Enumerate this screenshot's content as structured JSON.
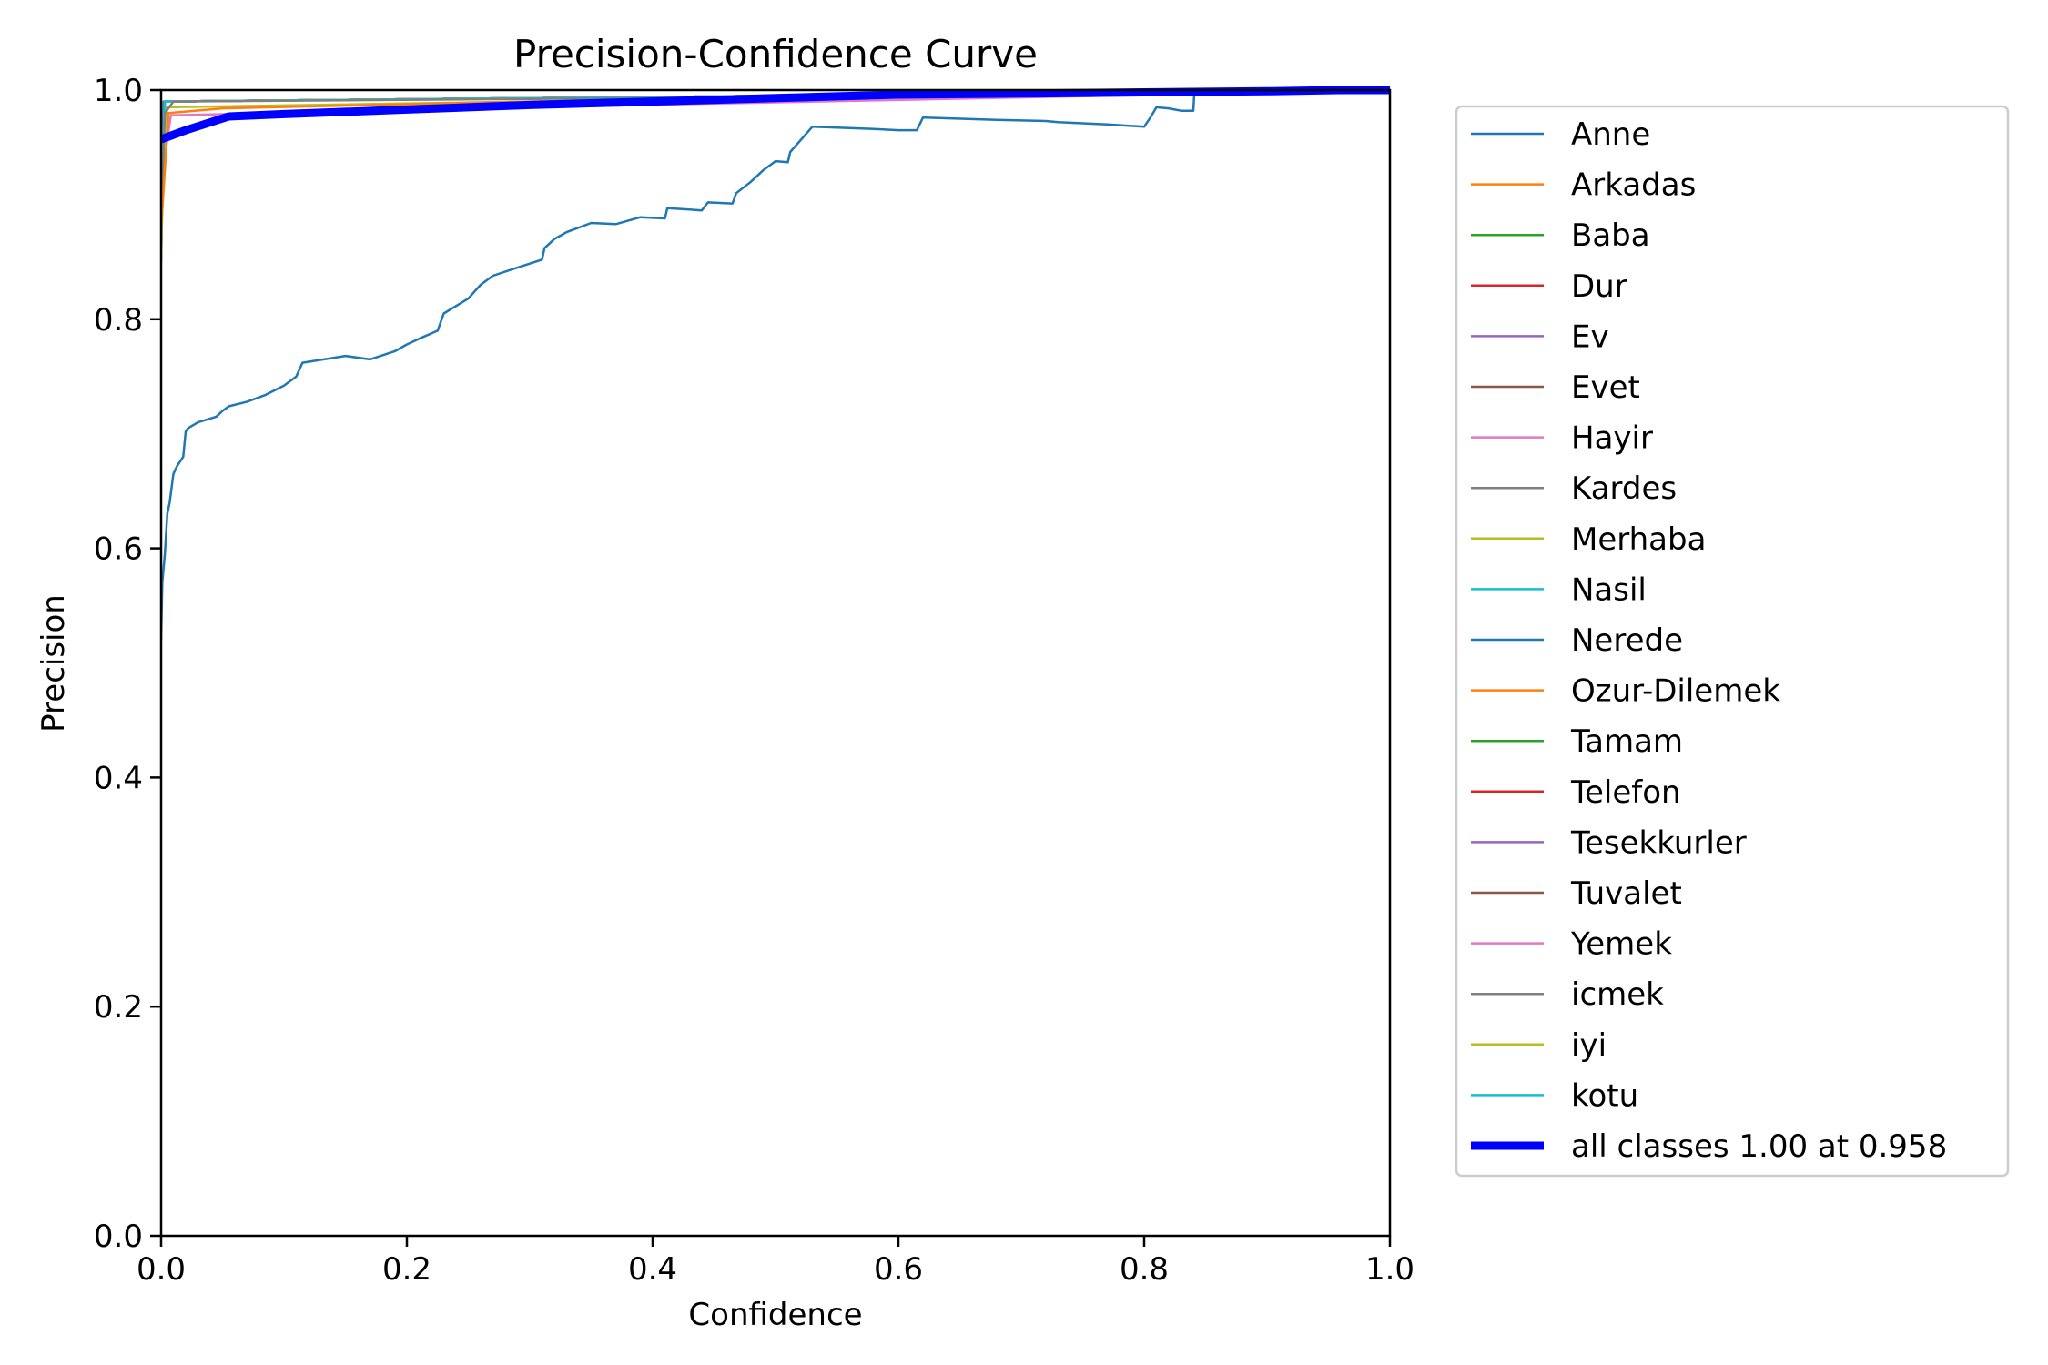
{
  "chart_data": {
    "type": "line",
    "title": "Precision-Confidence Curve",
    "xlabel": "Confidence",
    "ylabel": "Precision",
    "xlim": [
      0,
      1
    ],
    "ylim": [
      0,
      1
    ],
    "xticks": [
      "0.0",
      "0.2",
      "0.4",
      "0.6",
      "0.8",
      "1.0"
    ],
    "yticks": [
      "0.0",
      "0.2",
      "0.4",
      "0.6",
      "0.8",
      "1.0"
    ],
    "grid": false,
    "legend_position": "outside-right",
    "series": [
      {
        "name": "Anne",
        "color": "#1f77b4",
        "x": [
          0,
          0.002,
          1
        ],
        "y": [
          0.85,
          0.99,
          1.0
        ]
      },
      {
        "name": "Arkadas",
        "color": "#ff7f0e",
        "x": [
          0,
          0.003,
          0.006,
          0.05,
          0.3,
          0.6,
          1
        ],
        "y": [
          0.88,
          0.93,
          0.98,
          0.984,
          0.99,
          0.995,
          1.0
        ]
      },
      {
        "name": "Baba",
        "color": "#2ca02c",
        "x": [
          0,
          0.003,
          1
        ],
        "y": [
          0.9,
          0.99,
          1.0
        ]
      },
      {
        "name": "Dur",
        "color": "#d62728",
        "x": [
          0,
          0.003,
          1
        ],
        "y": [
          0.9,
          0.99,
          1.0
        ]
      },
      {
        "name": "Ev",
        "color": "#9467bd",
        "x": [
          0,
          0.003,
          1
        ],
        "y": [
          0.9,
          0.99,
          1.0
        ]
      },
      {
        "name": "Evet",
        "color": "#8c564b",
        "x": [
          0,
          0.003,
          1
        ],
        "y": [
          0.9,
          0.99,
          1.0
        ]
      },
      {
        "name": "Hayir",
        "color": "#e377c2",
        "x": [
          0,
          0.004,
          0.008,
          0.3,
          1
        ],
        "y": [
          0.88,
          0.95,
          0.978,
          0.985,
          1.0
        ]
      },
      {
        "name": "Kardes",
        "color": "#7f7f7f",
        "x": [
          0,
          0.003,
          1
        ],
        "y": [
          0.9,
          0.99,
          1.0
        ]
      },
      {
        "name": "Merhaba",
        "color": "#bcbd22",
        "x": [
          0,
          0.002,
          0.005,
          0.3,
          1
        ],
        "y": [
          0.85,
          0.95,
          0.985,
          0.99,
          1.0
        ]
      },
      {
        "name": "Nasil",
        "color": "#17becf",
        "x": [
          0,
          0.003,
          1
        ],
        "y": [
          0.9,
          0.99,
          1.0
        ]
      },
      {
        "name": "Nerede",
        "color": "#1f77b4",
        "x": [
          0,
          0.001,
          0.003,
          0.005,
          0.007,
          0.01,
          0.013,
          0.018,
          0.02,
          0.022,
          0.03,
          0.045,
          0.05,
          0.055,
          0.07,
          0.085,
          0.1,
          0.11,
          0.115,
          0.15,
          0.17,
          0.19,
          0.2,
          0.21,
          0.225,
          0.23,
          0.25,
          0.26,
          0.27,
          0.29,
          0.31,
          0.312,
          0.32,
          0.33,
          0.35,
          0.37,
          0.39,
          0.41,
          0.412,
          0.44,
          0.445,
          0.465,
          0.468,
          0.48,
          0.49,
          0.5,
          0.51,
          0.512,
          0.53,
          0.58,
          0.6,
          0.615,
          0.62,
          0.68,
          0.72,
          0.73,
          0.77,
          0.8,
          0.805,
          0.81,
          0.82,
          0.83,
          0.84,
          0.841,
          1.0
        ],
        "y": [
          0.52,
          0.57,
          0.595,
          0.63,
          0.64,
          0.665,
          0.672,
          0.68,
          0.702,
          0.705,
          0.71,
          0.715,
          0.72,
          0.724,
          0.728,
          0.734,
          0.742,
          0.75,
          0.762,
          0.768,
          0.765,
          0.772,
          0.778,
          0.783,
          0.79,
          0.805,
          0.818,
          0.83,
          0.838,
          0.845,
          0.852,
          0.862,
          0.87,
          0.876,
          0.884,
          0.883,
          0.889,
          0.888,
          0.897,
          0.895,
          0.902,
          0.901,
          0.91,
          0.92,
          0.93,
          0.938,
          0.937,
          0.946,
          0.968,
          0.966,
          0.965,
          0.965,
          0.976,
          0.974,
          0.973,
          0.972,
          0.97,
          0.968,
          0.976,
          0.985,
          0.984,
          0.982,
          0.982,
          1.0,
          1.0
        ]
      },
      {
        "name": "Ozur-Dilemek",
        "color": "#ff7f0e",
        "x": [
          0,
          0.003,
          1
        ],
        "y": [
          0.9,
          0.99,
          1.0
        ]
      },
      {
        "name": "Tamam",
        "color": "#2ca02c",
        "x": [
          0,
          0.003,
          1
        ],
        "y": [
          0.9,
          0.99,
          1.0
        ]
      },
      {
        "name": "Telefon",
        "color": "#d62728",
        "x": [
          0,
          0.003,
          1
        ],
        "y": [
          0.9,
          0.99,
          1.0
        ]
      },
      {
        "name": "Tesekkurler",
        "color": "#9467bd",
        "x": [
          0,
          0.003,
          1
        ],
        "y": [
          0.9,
          0.99,
          1.0
        ]
      },
      {
        "name": "Tuvalet",
        "color": "#8c564b",
        "x": [
          0,
          0.003,
          1
        ],
        "y": [
          0.9,
          0.99,
          1.0
        ]
      },
      {
        "name": "Yemek",
        "color": "#e377c2",
        "x": [
          0,
          0.003,
          1
        ],
        "y": [
          0.9,
          0.99,
          1.0
        ]
      },
      {
        "name": "icmek",
        "color": "#7f7f7f",
        "x": [
          0,
          0.003,
          0.01,
          0.4,
          1
        ],
        "y": [
          0.88,
          0.98,
          0.99,
          0.993,
          1.0
        ]
      },
      {
        "name": "iyi",
        "color": "#bcbd22",
        "x": [
          0,
          0.003,
          1
        ],
        "y": [
          0.9,
          0.99,
          1.0
        ]
      },
      {
        "name": "kotu",
        "color": "#17becf",
        "x": [
          0,
          0.003,
          1
        ],
        "y": [
          0.9,
          0.99,
          1.0
        ]
      }
    ],
    "summary": {
      "name": "all classes 1.00 at 0.958",
      "color": "#0000ff",
      "x": [
        0,
        0.02,
        0.055,
        0.1,
        0.2,
        0.3,
        0.4,
        0.5,
        0.6,
        0.7,
        0.8,
        0.9,
        0.958,
        1.0
      ],
      "y": [
        0.957,
        0.965,
        0.977,
        0.979,
        0.983,
        0.987,
        0.99,
        0.993,
        0.996,
        0.997,
        0.998,
        0.999,
        1.0,
        1.0
      ]
    }
  }
}
